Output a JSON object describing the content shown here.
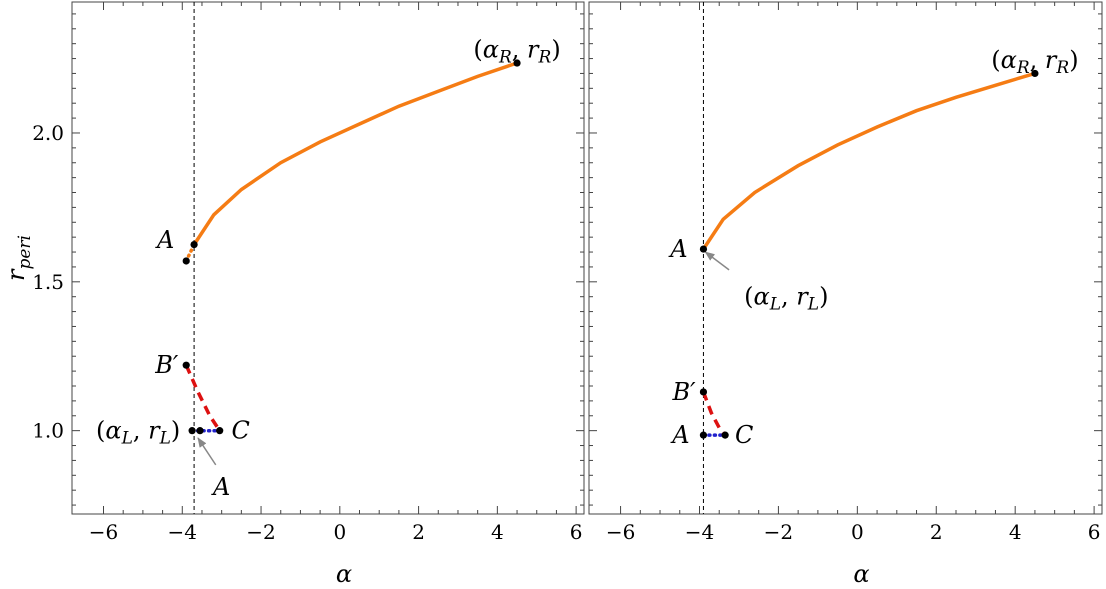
{
  "chart_data": [
    {
      "type": "line",
      "xlabel": "α",
      "ylabel": "r_peri",
      "xlim": [
        -6.8,
        6.2
      ],
      "ylim": [
        0.72,
        2.44
      ],
      "x_ticks": [
        -6,
        -4,
        -2,
        0,
        2,
        4,
        6
      ],
      "x_tick_labels": [
        "−6",
        "−4",
        "−2",
        "0",
        "2",
        "4",
        "6"
      ],
      "y_ticks": [
        1.0,
        1.5,
        2.0
      ],
      "y_tick_labels": [
        "1.0",
        "1.5",
        "2.0"
      ],
      "grid": false,
      "vline_x": -3.7,
      "series": [
        {
          "style": "solid",
          "color": "#f57c14",
          "points": [
            [
              -3.7,
              1.625
            ],
            [
              -3.2,
              1.725
            ],
            [
              -2.5,
              1.81
            ],
            [
              -1.5,
              1.9
            ],
            [
              -0.5,
              1.97
            ],
            [
              0.5,
              2.03
            ],
            [
              1.5,
              2.09
            ],
            [
              2.5,
              2.14
            ],
            [
              3.5,
              2.19
            ],
            [
              4.5,
              2.235
            ]
          ]
        },
        {
          "style": "dotted",
          "color": "#f57c14",
          "points": [
            [
              -3.9,
              1.57
            ],
            [
              -3.7,
              1.625
            ]
          ]
        },
        {
          "style": "dashed",
          "color": "#dd1111",
          "points": [
            [
              -3.9,
              1.22
            ],
            [
              -3.6,
              1.13
            ],
            [
              -3.3,
              1.05
            ],
            [
              -3.05,
              1.0
            ]
          ]
        },
        {
          "style": "dotted",
          "color": "#2222cc",
          "points": [
            [
              -3.75,
              1.0
            ],
            [
              -3.05,
              1.0
            ]
          ]
        }
      ],
      "markers": [
        [
          -3.7,
          1.625
        ],
        [
          -3.9,
          1.57
        ],
        [
          4.5,
          2.235
        ],
        [
          -3.9,
          1.22
        ],
        [
          -3.75,
          1.0
        ],
        [
          -3.55,
          1.0
        ],
        [
          -3.05,
          1.0
        ]
      ],
      "annotations": [
        {
          "text": "A",
          "x": -4.2,
          "y": 1.64,
          "anchor": "end"
        },
        {
          "text": "(α_R, r_R)",
          "x": 4.5,
          "y": 2.28,
          "anchor": "middle"
        },
        {
          "text": "B′",
          "x": -4.1,
          "y": 1.22,
          "anchor": "end"
        },
        {
          "text": "(α_L, r_L)",
          "x": -4.05,
          "y": 1.0,
          "anchor": "end"
        },
        {
          "text": "C",
          "x": -2.75,
          "y": 1.0,
          "anchor": "start"
        },
        {
          "text": "A",
          "x": -3.0,
          "y": 0.81,
          "anchor": "middle"
        }
      ],
      "arrows": [
        {
          "from": [
            -3.15,
            0.885
          ],
          "to": [
            -3.6,
            0.975
          ]
        }
      ]
    },
    {
      "type": "line",
      "xlabel": "α",
      "ylabel": "",
      "xlim": [
        -6.8,
        6.2
      ],
      "ylim": [
        0.72,
        2.44
      ],
      "x_ticks": [
        -6,
        -4,
        -2,
        0,
        2,
        4,
        6
      ],
      "x_tick_labels": [
        "−6",
        "−4",
        "−2",
        "0",
        "2",
        "4",
        "6"
      ],
      "y_ticks": [
        1.0,
        1.5,
        2.0
      ],
      "y_tick_labels": [],
      "grid": false,
      "vline_x": -3.9,
      "series": [
        {
          "style": "solid",
          "color": "#f57c14",
          "points": [
            [
              -3.9,
              1.61
            ],
            [
              -3.4,
              1.71
            ],
            [
              -2.6,
              1.8
            ],
            [
              -1.5,
              1.89
            ],
            [
              -0.5,
              1.96
            ],
            [
              0.5,
              2.02
            ],
            [
              1.5,
              2.075
            ],
            [
              2.5,
              2.12
            ],
            [
              3.5,
              2.16
            ],
            [
              4.5,
              2.2
            ]
          ]
        },
        {
          "style": "dashed",
          "color": "#dd1111",
          "points": [
            [
              -3.9,
              1.13
            ],
            [
              -3.7,
              1.06
            ],
            [
              -3.5,
              1.01
            ],
            [
              -3.35,
              0.985
            ]
          ]
        },
        {
          "style": "dotted",
          "color": "#2222cc",
          "points": [
            [
              -3.9,
              0.985
            ],
            [
              -3.35,
              0.985
            ]
          ]
        }
      ],
      "markers": [
        [
          -3.9,
          1.61
        ],
        [
          4.5,
          2.2
        ],
        [
          -3.9,
          1.13
        ],
        [
          -3.9,
          0.985
        ],
        [
          -3.35,
          0.985
        ]
      ],
      "annotations": [
        {
          "text": "A",
          "x": -4.3,
          "y": 1.61,
          "anchor": "end"
        },
        {
          "text": "(α_R, r_R)",
          "x": 4.5,
          "y": 2.245,
          "anchor": "middle"
        },
        {
          "text": "(α_L, r_L)",
          "x": -1.8,
          "y": 1.45,
          "anchor": "middle"
        },
        {
          "text": "B′",
          "x": -4.1,
          "y": 1.13,
          "anchor": "end"
        },
        {
          "text": "A",
          "x": -4.25,
          "y": 0.985,
          "anchor": "end"
        },
        {
          "text": "C",
          "x": -3.1,
          "y": 0.985,
          "anchor": "start"
        }
      ],
      "arrows": [
        {
          "from": [
            -3.25,
            1.54
          ],
          "to": [
            -3.85,
            1.6
          ]
        }
      ]
    }
  ]
}
